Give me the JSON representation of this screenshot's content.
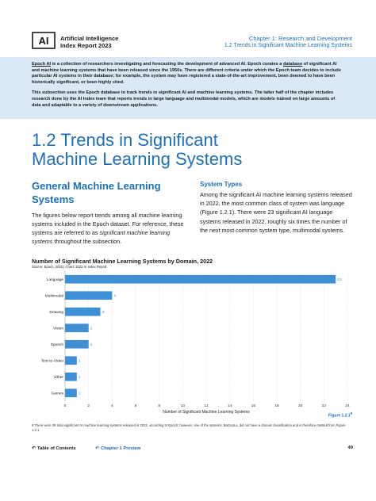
{
  "header": {
    "logo_mark": "AI",
    "logo_line1": "Artificial Intelligence",
    "logo_line2": "Index Report 2023",
    "chapter_title": "Chapter 1: Research and Development",
    "chapter_section": "1.2 Trends in Significant Machine Learning Systems"
  },
  "intro": {
    "p1_link1": "Epoch AI",
    "p1_text1": " is a collection of researchers investigating and forecasting the development of advanced AI. Epoch curates a ",
    "p1_link2": "database",
    "p1_text2": " of significant AI and machine learning systems that have been released since the 1950s. There are different criteria under which the Epoch team decides to include particular AI systems in their database; for example, the system may have registered a state-of-the-art improvement, been deemed to have been historically significant, or been highly cited.",
    "p2": "This subsection uses the Epoch database to track trends in significant AI and machine learning systems. The latter half of the chapter includes research done by the AI Index team that reports trends in large language and multimodal models, which are models trained on large amounts of data and adaptable to a variety of downstream applications."
  },
  "section": {
    "title": "1.2 Trends in Significant Machine Learning Systems",
    "subsection": "General Machine Learning Systems",
    "left_text1": "The figures below report trends among all machine learning systems included in the Epoch dataset. For reference, these systems are referred to as ",
    "left_em": "significant machine learning systems",
    "left_text2": " throughout the subsection.",
    "sys_head": "System Types",
    "right_text": "Among the significant AI machine learning systems released in 2022, the most common class of system was language (Figure 1.2.1). There were 23 significant AI language systems released in 2022, roughly six times the number of the next most common system type, multimodal systems."
  },
  "chart_data": {
    "type": "bar",
    "orientation": "horizontal",
    "title": "Number of Significant Machine Learning Systems by Domain, 2022",
    "source": "Source: Epoch, 2022 | Chart: 2023 AI Index Report",
    "categories": [
      "Language",
      "Multimodal",
      "Drawing",
      "Vision",
      "Speech",
      "Text-to-Video",
      "Other",
      "Games"
    ],
    "values": [
      23,
      4,
      3,
      2,
      2,
      1,
      1,
      1
    ],
    "xlabel": "Number of Significant Machine Learning Systems",
    "ylabel": "",
    "xlim": [
      0,
      24
    ],
    "xticks": [
      0,
      2,
      4,
      6,
      8,
      10,
      12,
      14,
      16,
      18,
      20,
      22,
      24
    ],
    "grid": true,
    "bar_color": "#3d8fd6",
    "label_color": "#3d8fd6"
  },
  "figure_ref": "Figure 1.2.1",
  "figure_sup": "6",
  "footnote": "6 There were 38 total significant AI machine learning systems released in 2022, according to Epoch; however, one of the systems, BaGuaLu, did not have a domain classification and is therefore omitted from Figure 1.2.1.",
  "footer": {
    "toc": "Table of Contents",
    "preview": "Chapter 1 Preview",
    "page": "49"
  },
  "colors": {
    "accent": "#1f6fb8",
    "intro_bg": "#dbe9f6"
  }
}
